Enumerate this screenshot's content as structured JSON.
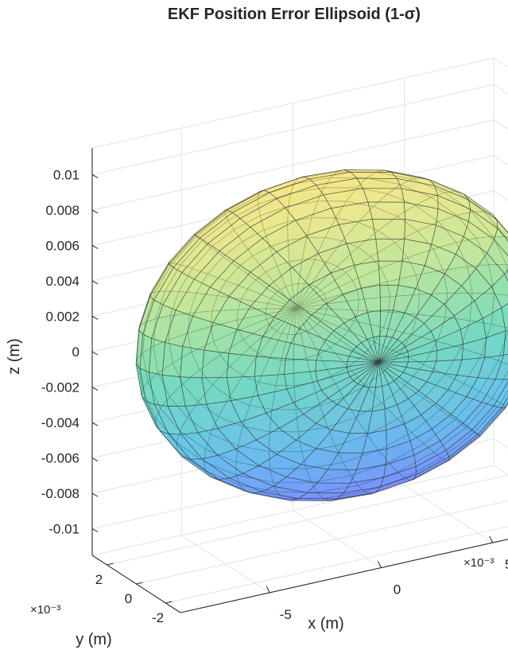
{
  "chart_data": {
    "type": "surface",
    "title": "EKF  Position  Error  Ellipsoid  (1-σ)",
    "xlabel": "x (m)",
    "ylabel": "y (m)",
    "zlabel": "z (m)",
    "x_exponent_label": "×10⁻³",
    "y_exponent_label": "×10⁻³",
    "xlim": [
      -0.009,
      0.009
    ],
    "ylim": [
      -0.003,
      0.003
    ],
    "zlim": [
      -0.0115,
      0.0115
    ],
    "x_ticks": [
      {
        "value": -0.005,
        "label": "-5"
      },
      {
        "value": 0,
        "label": "0"
      },
      {
        "value": 0.005,
        "label": "5"
      }
    ],
    "y_ticks": [
      {
        "value": -0.002,
        "label": "-2"
      },
      {
        "value": 0,
        "label": "0"
      },
      {
        "value": 0.002,
        "label": "2"
      }
    ],
    "z_ticks": [
      {
        "value": 0.01,
        "label": "0.01"
      },
      {
        "value": 0.008,
        "label": "0.008"
      },
      {
        "value": 0.006,
        "label": "0.006"
      },
      {
        "value": 0.004,
        "label": "0.004"
      },
      {
        "value": 0.002,
        "label": "0.002"
      },
      {
        "value": 0,
        "label": "0"
      },
      {
        "value": -0.002,
        "label": "-0.002"
      },
      {
        "value": -0.004,
        "label": "-0.004"
      },
      {
        "value": -0.006,
        "label": "-0.006"
      },
      {
        "value": -0.008,
        "label": "-0.008"
      },
      {
        "value": -0.01,
        "label": "-0.01"
      }
    ],
    "ellipsoid": {
      "center": [
        0,
        0,
        0
      ],
      "semi_axes": [
        0.0085,
        0.0028,
        0.0095
      ],
      "rotation_about_y_deg": -35,
      "mesh_lat": 20,
      "mesh_lon": 30,
      "face_alpha": 0.55,
      "edge_color": "#3a3a3a",
      "colormap": [
        "#5a6bff",
        "#3fb7e6",
        "#58d6a4",
        "#c9e37a",
        "#f7e06a"
      ]
    },
    "grid": true,
    "box": "back-planes"
  }
}
